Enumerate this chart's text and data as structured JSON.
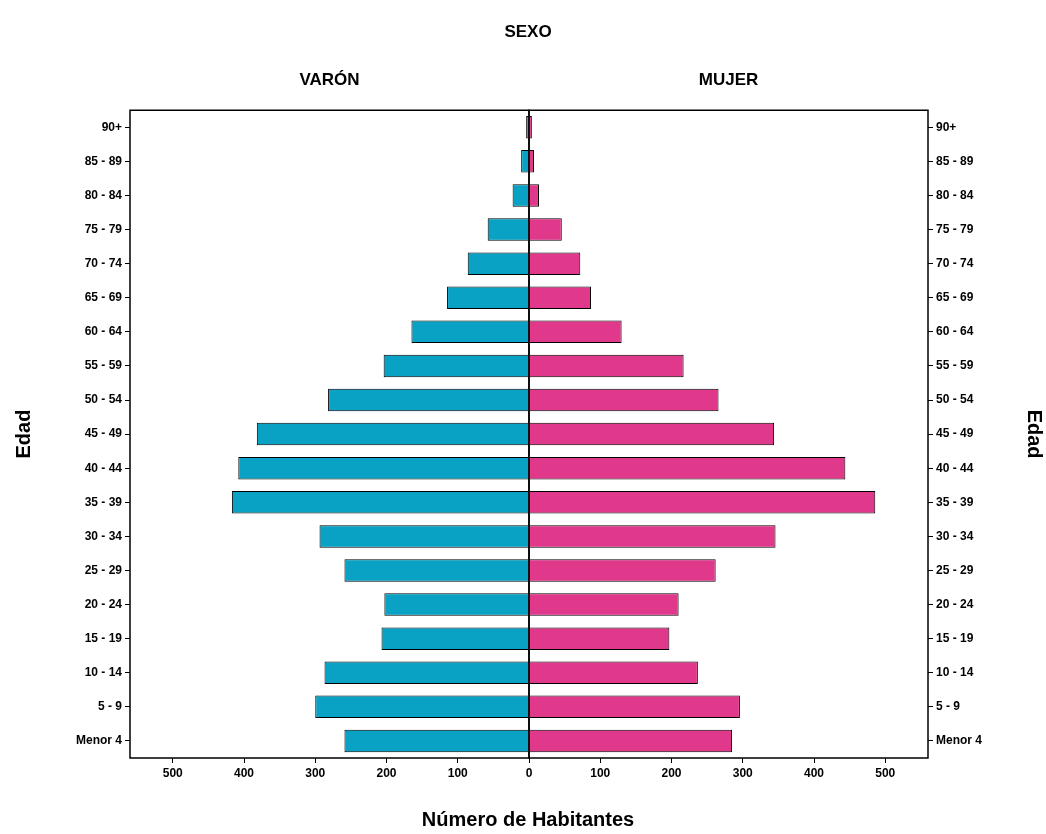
{
  "chart_data": [
    {
      "type": "bar",
      "orientation": "horizontal",
      "title": "SEXO",
      "subtitle": "VARÓN",
      "xlabel": "Número de Habitantes",
      "ylabel": "Edad",
      "categories": [
        "90+",
        "85 - 89",
        "80 - 84",
        "75 - 79",
        "70 - 74",
        "65 - 69",
        "60 - 64",
        "55 - 59",
        "50 - 54",
        "45 - 49",
        "40 - 44",
        "35 - 39",
        "30 - 34",
        "25 - 29",
        "20 - 24",
        "15 - 19",
        "10 - 14",
        "5 - 9",
        "Menor 4"
      ],
      "series": [
        {
          "color": "#0aa2c4",
          "values": [
            4,
            11,
            23,
            58,
            86,
            115,
            165,
            204,
            282,
            382,
            408,
            417,
            294,
            259,
            203,
            207,
            287,
            300,
            259
          ]
        }
      ],
      "xlim": [
        560,
        0
      ],
      "xticks": [
        500,
        400,
        300,
        200,
        100,
        0
      ]
    },
    {
      "type": "bar",
      "orientation": "horizontal",
      "subtitle": "MUJER",
      "ylabel": "Edad",
      "categories": [
        "90+",
        "85 - 89",
        "80 - 84",
        "75 - 79",
        "70 - 74",
        "65 - 69",
        "60 - 64",
        "55 - 59",
        "50 - 54",
        "45 - 49",
        "40 - 44",
        "35 - 39",
        "30 - 34",
        "25 - 29",
        "20 - 24",
        "15 - 19",
        "10 - 14",
        "5 - 9",
        "Menor 4"
      ],
      "series": [
        {
          "color": "#e0398b",
          "values": [
            4,
            7,
            14,
            46,
            72,
            87,
            130,
            217,
            266,
            344,
            444,
            486,
            346,
            262,
            210,
            197,
            237,
            296,
            285
          ]
        }
      ],
      "xlim": [
        0,
        560
      ],
      "xticks": [
        {
          "value": 0,
          "label": null
        },
        100,
        200,
        300,
        400,
        500
      ]
    }
  ]
}
